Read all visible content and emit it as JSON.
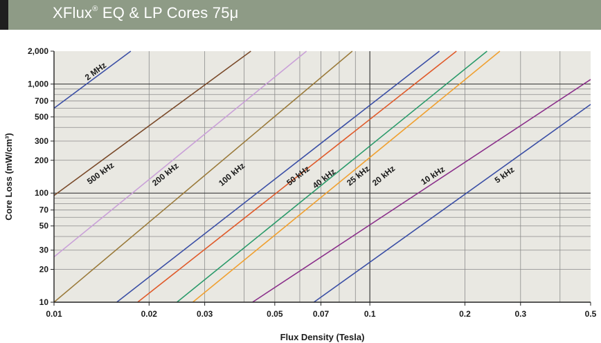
{
  "header": {
    "title_prefix": "XFlux",
    "title_sup": "®",
    "title_suffix": " EQ & LP Cores 75μ"
  },
  "colors": {
    "header_bg": "#8e9b86",
    "plot_bg": "#e9e8e2",
    "grid": "#8a8a8a"
  },
  "chart_data": {
    "type": "line",
    "xscale": "log",
    "yscale": "log",
    "xlabel": "Flux Density (Tesla)",
    "ylabel": "Core Loss (mW/cm³)",
    "xlim": [
      0.01,
      0.5
    ],
    "ylim": [
      10,
      2000
    ],
    "grid": true,
    "x_ticks": [
      0.01,
      0.02,
      0.03,
      0.05,
      0.07,
      0.1,
      0.2,
      0.3,
      0.5
    ],
    "x_tick_labels": [
      "0.01",
      "0.02",
      "0.03",
      "0.05",
      "0.07",
      "0.1",
      "0.2",
      "0.3",
      "0.5"
    ],
    "x_gridlines": [
      0.02,
      0.03,
      0.04,
      0.05,
      0.06,
      0.07,
      0.08,
      0.09,
      0.1,
      0.2,
      0.3,
      0.4
    ],
    "y_ticks": [
      10,
      20,
      30,
      50,
      70,
      100,
      200,
      300,
      500,
      700,
      1000,
      2000
    ],
    "y_tick_labels": [
      "10",
      "20",
      "30",
      "50",
      "70",
      "100",
      "200",
      "300",
      "500",
      "700",
      "1,000",
      "2,000"
    ],
    "y_gridlines": [
      20,
      30,
      40,
      50,
      60,
      70,
      80,
      90,
      100,
      200,
      300,
      400,
      500,
      600,
      700,
      800,
      900,
      1000
    ],
    "series": [
      {
        "name": "2 MHz",
        "color": "#3a4ea5",
        "x": [
          0.01,
          0.0175
        ],
        "y": [
          600,
          2000
        ],
        "label_at": [
          0.0137,
          1250
        ]
      },
      {
        "name": "500 kHz",
        "color": "#7a4a2a",
        "x": [
          0.01,
          0.042
        ],
        "y": [
          95,
          2000
        ],
        "label_at": [
          0.0142,
          145
        ]
      },
      {
        "name": "200 kHz",
        "color": "#c9a0d8",
        "x": [
          0.01,
          0.063
        ],
        "y": [
          26,
          2000
        ],
        "label_at": [
          0.0228,
          142
        ]
      },
      {
        "name": "100 kHz",
        "color": "#9a7a3a",
        "x": [
          0.01,
          0.088
        ],
        "y": [
          10,
          2000
        ],
        "label_at": [
          0.037,
          142
        ]
      },
      {
        "name": "50 kHz",
        "color": "#3a4ea5",
        "x": [
          0.0158,
          0.166
        ],
        "y": [
          10,
          2000
        ],
        "label_at": [
          0.06,
          138
        ]
      },
      {
        "name": "40 kHz",
        "color": "#e05a2a",
        "x": [
          0.0184,
          0.188
        ],
        "y": [
          10,
          2000
        ],
        "label_at": [
          0.0725,
          130
        ]
      },
      {
        "name": "25 kHz",
        "color": "#2a9a6a",
        "x": [
          0.0245,
          0.235
        ],
        "y": [
          10,
          2000
        ],
        "label_at": [
          0.093,
          138
        ]
      },
      {
        "name": "20 kHz",
        "color": "#f0a030",
        "x": [
          0.0275,
          0.258
        ],
        "y": [
          10,
          2000
        ],
        "label_at": [
          0.112,
          138
        ]
      },
      {
        "name": "10 kHz",
        "color": "#8a2e8a",
        "x": [
          0.0425,
          0.5
        ],
        "y": [
          10,
          1100
        ],
        "label_at": [
          0.16,
          138
        ]
      },
      {
        "name": "5 kHz",
        "color": "#3a4ea5",
        "x": [
          0.0665,
          0.5
        ],
        "y": [
          10,
          650
        ],
        "label_at": [
          0.27,
          140
        ]
      }
    ]
  }
}
